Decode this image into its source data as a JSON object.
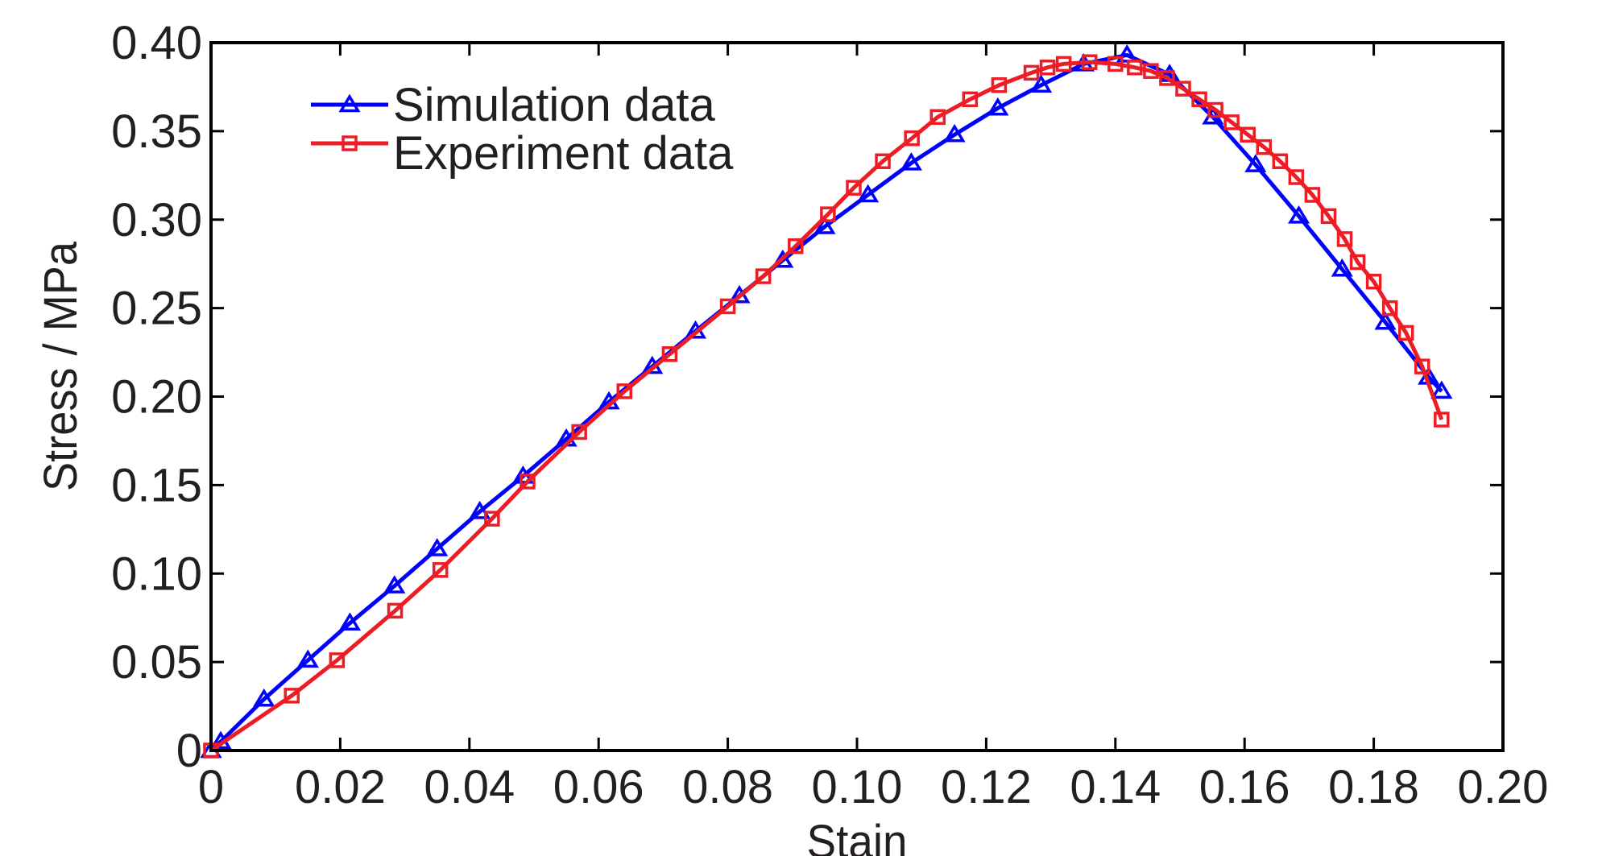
{
  "chart_data": {
    "type": "line",
    "title": "",
    "xlabel": "Stain",
    "ylabel": "Stress / MPa",
    "xlim": [
      0,
      0.2
    ],
    "ylim": [
      0,
      0.4
    ],
    "grid": false,
    "legend": "top-left",
    "x_ticks": [
      "0",
      "0.02",
      "0.04",
      "0.06",
      "0.08",
      "0.10",
      "0.12",
      "0.14",
      "0.16",
      "0.18",
      "0.20"
    ],
    "y_ticks": [
      "0",
      "0.05",
      "0.10",
      "0.15",
      "0.20",
      "0.25",
      "0.30",
      "0.35",
      "0.40"
    ],
    "series": [
      {
        "name": "Simulation data",
        "color": "#0000ff",
        "marker": "triangle",
        "x": [
          0,
          0.0015,
          0.0082,
          0.015,
          0.0215,
          0.0284,
          0.035,
          0.0416,
          0.0483,
          0.055,
          0.0616,
          0.0683,
          0.075,
          0.0818,
          0.0885,
          0.095,
          0.1017,
          0.1084,
          0.1151,
          0.1218,
          0.1285,
          0.1351,
          0.1418,
          0.1484,
          0.1551,
          0.1617,
          0.1684,
          0.1751,
          0.1818,
          0.1885,
          0.1905
        ],
        "y": [
          0,
          0.005,
          0.029,
          0.051,
          0.072,
          0.093,
          0.114,
          0.135,
          0.155,
          0.176,
          0.197,
          0.217,
          0.237,
          0.257,
          0.277,
          0.296,
          0.314,
          0.332,
          0.348,
          0.363,
          0.376,
          0.388,
          0.393,
          0.382,
          0.358,
          0.331,
          0.302,
          0.272,
          0.242,
          0.211,
          0.203
        ]
      },
      {
        "name": "Experiment data",
        "color": "#ee1c25",
        "marker": "square",
        "x": [
          0,
          0.0125,
          0.0195,
          0.0285,
          0.0355,
          0.0435,
          0.049,
          0.057,
          0.064,
          0.071,
          0.08,
          0.0855,
          0.0905,
          0.0955,
          0.0995,
          0.104,
          0.1085,
          0.1125,
          0.1175,
          0.122,
          0.127,
          0.1295,
          0.132,
          0.136,
          0.14,
          0.143,
          0.1455,
          0.148,
          0.1505,
          0.153,
          0.1555,
          0.158,
          0.1605,
          0.163,
          0.1655,
          0.168,
          0.1705,
          0.173,
          0.1755,
          0.1775,
          0.18,
          0.1825,
          0.185,
          0.1875,
          0.1905
        ],
        "y": [
          0,
          0.031,
          0.051,
          0.079,
          0.102,
          0.131,
          0.152,
          0.18,
          0.203,
          0.224,
          0.251,
          0.268,
          0.285,
          0.303,
          0.318,
          0.333,
          0.346,
          0.358,
          0.368,
          0.376,
          0.383,
          0.386,
          0.388,
          0.389,
          0.388,
          0.386,
          0.384,
          0.38,
          0.374,
          0.368,
          0.362,
          0.355,
          0.348,
          0.341,
          0.333,
          0.324,
          0.314,
          0.302,
          0.289,
          0.276,
          0.265,
          0.25,
          0.236,
          0.217,
          0.187
        ]
      }
    ]
  }
}
